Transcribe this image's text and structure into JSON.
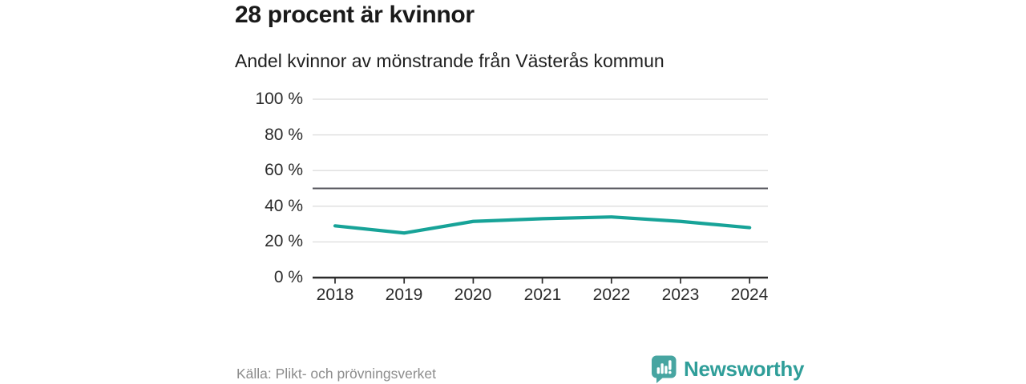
{
  "header": {
    "title": "28 procent är kvinnor",
    "subtitle": "Andel kvinnor av mönstrande från Västerås kommun"
  },
  "chart_data": {
    "type": "line",
    "title": "28 procent är kvinnor",
    "subtitle": "Andel kvinnor av mönstrande från Västerås kommun",
    "x": [
      2018,
      2019,
      2020,
      2021,
      2022,
      2023,
      2024
    ],
    "series": [
      {
        "name": "Andel kvinnor av mönstrande från Västerås kommun",
        "values": [
          29,
          25,
          31.5,
          33,
          34,
          31.5,
          28
        ]
      }
    ],
    "unit": "%",
    "ylim": [
      0,
      100
    ],
    "yticks": [
      0,
      20,
      40,
      60,
      80,
      100
    ],
    "ytick_labels": [
      "0 %",
      "20 %",
      "40 %",
      "60 %",
      "80 %",
      "100 %"
    ],
    "reference_line": {
      "value": 50
    },
    "grid": true,
    "legend": "none",
    "line_color": "#17a398"
  },
  "footer": {
    "source": "Källa: Plikt- och prövningsverket",
    "brand_name": "Newsworthy"
  },
  "colors": {
    "accent_line": "#17a398",
    "reference_line": "#55555d",
    "gridline": "#e0e0e0",
    "axis": "#2b2b2b",
    "brand_teal": "#47a5a1",
    "brand_text": "#2f9e99",
    "title_text": "#1a1a1a",
    "muted_text": "#8c8c8c"
  }
}
